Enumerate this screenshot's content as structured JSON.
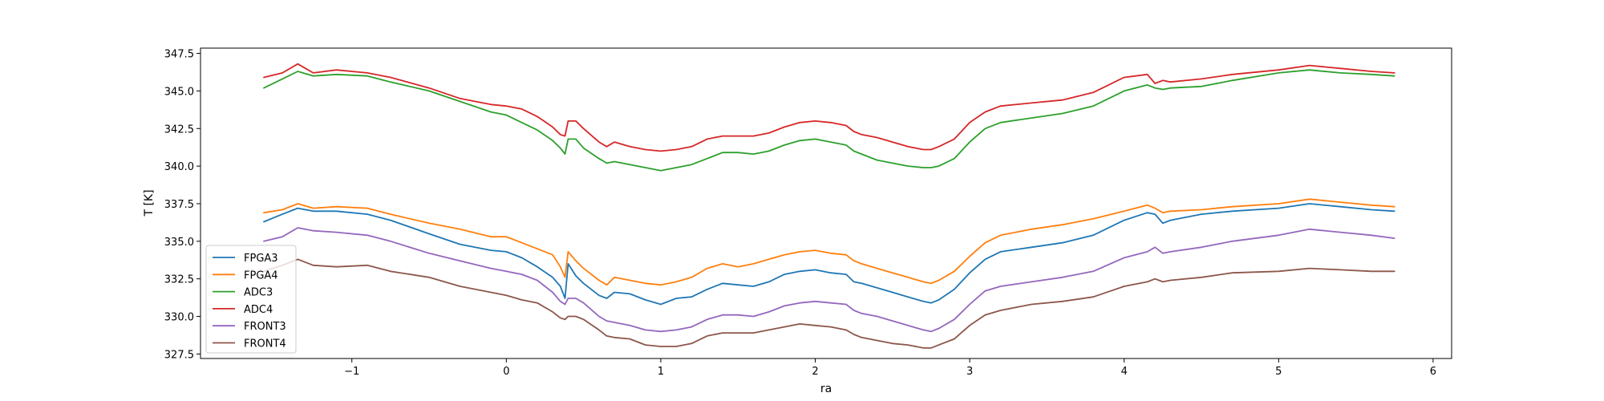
{
  "chart_data": {
    "type": "line",
    "title": "",
    "xlabel": "ra",
    "ylabel": "T [K]",
    "xlim": [
      -1.98,
      6.12
    ],
    "ylim": [
      327.2,
      347.85
    ],
    "xticks": [
      -1,
      0,
      1,
      2,
      3,
      4,
      5,
      6
    ],
    "xtick_labels": [
      "−1",
      "0",
      "1",
      "2",
      "3",
      "4",
      "5",
      "6"
    ],
    "yticks": [
      327.5,
      330.0,
      332.5,
      335.0,
      337.5,
      340.0,
      342.5,
      345.0,
      347.5
    ],
    "ytick_labels": [
      "327.5",
      "330.0",
      "332.5",
      "335.0",
      "337.5",
      "340.0",
      "342.5",
      "345.0",
      "347.5"
    ],
    "grid": false,
    "legend_position": "lower-left",
    "series": [
      {
        "name": "FPGA3",
        "color": "#1f77b4",
        "x": [
          -1.57,
          -1.45,
          -1.35,
          -1.25,
          -1.1,
          -0.9,
          -0.75,
          -0.5,
          -0.3,
          -0.1,
          0,
          0.1,
          0.2,
          0.3,
          0.35,
          0.38,
          0.4,
          0.45,
          0.5,
          0.6,
          0.65,
          0.7,
          0.8,
          0.9,
          1.0,
          1.1,
          1.2,
          1.3,
          1.4,
          1.5,
          1.6,
          1.7,
          1.8,
          1.9,
          2.0,
          2.1,
          2.2,
          2.25,
          2.3,
          2.4,
          2.5,
          2.6,
          2.7,
          2.75,
          2.8,
          2.9,
          3.0,
          3.1,
          3.2,
          3.4,
          3.6,
          3.8,
          4.0,
          4.15,
          4.2,
          4.25,
          4.3,
          4.5,
          4.7,
          5.0,
          5.2,
          5.4,
          5.6,
          5.75
        ],
        "y": [
          336.3,
          336.8,
          337.2,
          337.0,
          337.0,
          336.8,
          336.4,
          335.5,
          334.8,
          334.4,
          334.3,
          333.9,
          333.3,
          332.6,
          332.0,
          331.2,
          333.5,
          332.7,
          332.2,
          331.4,
          331.2,
          331.6,
          331.5,
          331.1,
          330.8,
          331.2,
          331.3,
          331.8,
          332.2,
          332.1,
          332.0,
          332.3,
          332.8,
          333.0,
          333.1,
          332.9,
          332.8,
          332.3,
          332.2,
          331.9,
          331.6,
          331.3,
          331.0,
          330.9,
          331.1,
          331.8,
          332.9,
          333.8,
          334.3,
          334.6,
          334.9,
          335.4,
          336.4,
          336.9,
          336.8,
          336.2,
          336.4,
          336.8,
          337.0,
          337.2,
          337.5,
          337.3,
          337.1,
          337.0
        ]
      },
      {
        "name": "FPGA4",
        "color": "#ff7f0e",
        "x": [
          -1.57,
          -1.45,
          -1.35,
          -1.25,
          -1.1,
          -0.9,
          -0.75,
          -0.5,
          -0.3,
          -0.1,
          0,
          0.1,
          0.2,
          0.3,
          0.35,
          0.38,
          0.4,
          0.45,
          0.5,
          0.6,
          0.65,
          0.7,
          0.8,
          0.9,
          1.0,
          1.1,
          1.2,
          1.3,
          1.4,
          1.5,
          1.6,
          1.7,
          1.8,
          1.9,
          2.0,
          2.1,
          2.2,
          2.25,
          2.3,
          2.4,
          2.5,
          2.6,
          2.7,
          2.75,
          2.8,
          2.9,
          3.0,
          3.1,
          3.2,
          3.4,
          3.6,
          3.8,
          4.0,
          4.15,
          4.2,
          4.25,
          4.3,
          4.5,
          4.7,
          5.0,
          5.2,
          5.4,
          5.6,
          5.75
        ],
        "y": [
          336.9,
          337.1,
          337.5,
          337.2,
          337.3,
          337.2,
          336.8,
          336.2,
          335.8,
          335.3,
          335.3,
          334.9,
          334.5,
          334.1,
          333.3,
          332.6,
          334.3,
          333.7,
          333.2,
          332.4,
          332.1,
          332.6,
          332.4,
          332.2,
          332.1,
          332.3,
          332.6,
          333.2,
          333.5,
          333.3,
          333.5,
          333.8,
          334.1,
          334.3,
          334.4,
          334.2,
          334.1,
          333.7,
          333.5,
          333.2,
          332.9,
          332.6,
          332.3,
          332.2,
          332.4,
          333.0,
          334.0,
          334.9,
          335.4,
          335.8,
          336.1,
          336.5,
          337.0,
          337.4,
          337.2,
          336.9,
          337.0,
          337.1,
          337.3,
          337.5,
          337.8,
          337.6,
          337.4,
          337.3
        ]
      },
      {
        "name": "ADC3",
        "color": "#2ca02c",
        "x": [
          -1.57,
          -1.45,
          -1.35,
          -1.25,
          -1.1,
          -0.9,
          -0.75,
          -0.5,
          -0.3,
          -0.1,
          0,
          0.1,
          0.2,
          0.3,
          0.35,
          0.38,
          0.4,
          0.45,
          0.5,
          0.6,
          0.65,
          0.7,
          0.8,
          0.9,
          1.0,
          1.1,
          1.2,
          1.3,
          1.4,
          1.5,
          1.6,
          1.7,
          1.8,
          1.9,
          2.0,
          2.1,
          2.2,
          2.25,
          2.3,
          2.4,
          2.5,
          2.6,
          2.7,
          2.75,
          2.8,
          2.9,
          3.0,
          3.1,
          3.2,
          3.4,
          3.6,
          3.8,
          4.0,
          4.15,
          4.2,
          4.25,
          4.3,
          4.5,
          4.7,
          5.0,
          5.2,
          5.4,
          5.6,
          5.75
        ],
        "y": [
          345.2,
          345.8,
          346.3,
          346.0,
          346.1,
          346.0,
          345.6,
          345.0,
          344.3,
          343.6,
          343.4,
          342.9,
          342.4,
          341.7,
          341.2,
          340.8,
          341.8,
          341.8,
          341.2,
          340.5,
          340.2,
          340.3,
          340.1,
          339.9,
          339.7,
          339.9,
          340.1,
          340.5,
          340.9,
          340.9,
          340.8,
          341.0,
          341.4,
          341.7,
          341.8,
          341.6,
          341.4,
          341.0,
          340.8,
          340.4,
          340.2,
          340.0,
          339.9,
          339.9,
          340.0,
          340.5,
          341.6,
          342.5,
          342.9,
          343.2,
          343.5,
          344.0,
          345.0,
          345.4,
          345.2,
          345.1,
          345.2,
          345.3,
          345.7,
          346.2,
          346.4,
          346.2,
          346.1,
          346.0
        ]
      },
      {
        "name": "ADC4",
        "color": "#d62728",
        "x": [
          -1.57,
          -1.45,
          -1.35,
          -1.25,
          -1.1,
          -0.9,
          -0.75,
          -0.5,
          -0.3,
          -0.1,
          0,
          0.1,
          0.2,
          0.3,
          0.35,
          0.38,
          0.4,
          0.45,
          0.5,
          0.6,
          0.65,
          0.7,
          0.8,
          0.9,
          1.0,
          1.1,
          1.2,
          1.3,
          1.4,
          1.5,
          1.6,
          1.7,
          1.8,
          1.9,
          2.0,
          2.1,
          2.2,
          2.25,
          2.3,
          2.4,
          2.5,
          2.6,
          2.7,
          2.75,
          2.8,
          2.9,
          3.0,
          3.1,
          3.2,
          3.4,
          3.6,
          3.8,
          4.0,
          4.15,
          4.2,
          4.25,
          4.3,
          4.5,
          4.7,
          5.0,
          5.2,
          5.4,
          5.6,
          5.75
        ],
        "y": [
          345.9,
          346.2,
          346.8,
          346.2,
          346.4,
          346.2,
          345.9,
          345.2,
          344.5,
          344.1,
          344.0,
          343.8,
          343.3,
          342.6,
          342.1,
          342.0,
          343.0,
          343.0,
          342.5,
          341.6,
          341.3,
          341.6,
          341.3,
          341.1,
          341.0,
          341.1,
          341.3,
          341.8,
          342.0,
          342.0,
          342.0,
          342.2,
          342.6,
          342.9,
          343.0,
          342.9,
          342.7,
          342.3,
          342.1,
          341.9,
          341.6,
          341.3,
          341.1,
          341.1,
          341.3,
          341.8,
          342.9,
          343.6,
          344.0,
          344.2,
          344.4,
          344.9,
          345.9,
          346.1,
          345.5,
          345.7,
          345.6,
          345.8,
          346.1,
          346.4,
          346.7,
          346.5,
          346.3,
          346.2
        ]
      },
      {
        "name": "FRONT3",
        "color": "#9467bd",
        "x": [
          -1.57,
          -1.45,
          -1.35,
          -1.25,
          -1.1,
          -0.9,
          -0.75,
          -0.5,
          -0.3,
          -0.1,
          0,
          0.1,
          0.2,
          0.3,
          0.35,
          0.38,
          0.4,
          0.45,
          0.5,
          0.6,
          0.65,
          0.7,
          0.8,
          0.9,
          1.0,
          1.1,
          1.2,
          1.3,
          1.4,
          1.5,
          1.6,
          1.7,
          1.8,
          1.9,
          2.0,
          2.1,
          2.2,
          2.25,
          2.3,
          2.4,
          2.5,
          2.6,
          2.7,
          2.75,
          2.8,
          2.9,
          3.0,
          3.1,
          3.2,
          3.4,
          3.6,
          3.8,
          4.0,
          4.15,
          4.2,
          4.25,
          4.3,
          4.5,
          4.7,
          5.0,
          5.2,
          5.4,
          5.6,
          5.75
        ],
        "y": [
          335.0,
          335.3,
          335.9,
          335.7,
          335.6,
          335.4,
          335.0,
          334.2,
          333.7,
          333.2,
          333.0,
          332.8,
          332.4,
          331.6,
          331.0,
          330.8,
          331.2,
          331.2,
          330.9,
          330.0,
          329.7,
          329.6,
          329.4,
          329.1,
          329.0,
          329.1,
          329.3,
          329.8,
          330.1,
          330.1,
          330.0,
          330.3,
          330.7,
          330.9,
          331.0,
          330.9,
          330.8,
          330.4,
          330.2,
          330.0,
          329.7,
          329.4,
          329.1,
          329.0,
          329.2,
          329.8,
          330.8,
          331.7,
          332.0,
          332.3,
          332.6,
          333.0,
          333.9,
          334.3,
          334.6,
          334.2,
          334.3,
          334.6,
          335.0,
          335.4,
          335.8,
          335.6,
          335.4,
          335.2
        ]
      },
      {
        "name": "FRONT4",
        "color": "#8c564b",
        "x": [
          -1.57,
          -1.45,
          -1.35,
          -1.25,
          -1.1,
          -0.9,
          -0.75,
          -0.5,
          -0.3,
          -0.1,
          0,
          0.1,
          0.2,
          0.3,
          0.35,
          0.38,
          0.4,
          0.45,
          0.5,
          0.6,
          0.65,
          0.7,
          0.8,
          0.9,
          1.0,
          1.1,
          1.2,
          1.3,
          1.4,
          1.5,
          1.6,
          1.7,
          1.8,
          1.9,
          2.0,
          2.1,
          2.2,
          2.25,
          2.3,
          2.4,
          2.5,
          2.6,
          2.7,
          2.75,
          2.8,
          2.9,
          3.0,
          3.1,
          3.2,
          3.4,
          3.6,
          3.8,
          4.0,
          4.15,
          4.2,
          4.25,
          4.3,
          4.5,
          4.7,
          5.0,
          5.2,
          5.4,
          5.6,
          5.75
        ],
        "y": [
          333.0,
          333.4,
          333.8,
          333.4,
          333.3,
          333.4,
          333.0,
          332.6,
          332.0,
          331.6,
          331.4,
          331.1,
          330.9,
          330.3,
          329.9,
          329.8,
          330.0,
          330.0,
          329.8,
          329.1,
          328.7,
          328.6,
          328.5,
          328.1,
          328.0,
          328.0,
          328.2,
          328.7,
          328.9,
          328.9,
          328.9,
          329.1,
          329.3,
          329.5,
          329.4,
          329.3,
          329.1,
          328.8,
          328.6,
          328.4,
          328.2,
          328.1,
          327.9,
          327.9,
          328.1,
          328.5,
          329.4,
          330.1,
          330.4,
          330.8,
          331.0,
          331.3,
          332.0,
          332.3,
          332.5,
          332.3,
          332.4,
          332.6,
          332.9,
          333.0,
          333.2,
          333.1,
          333.0,
          333.0
        ]
      }
    ]
  }
}
